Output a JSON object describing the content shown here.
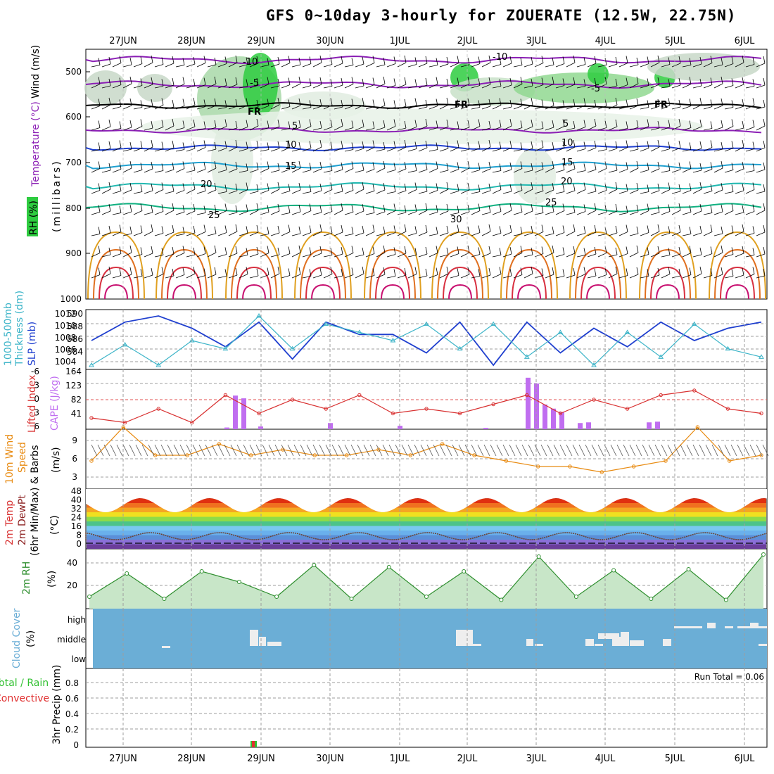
{
  "title": "GFS 0~10day 3-hourly for ZOUERATE (12.5W, 22.75N)",
  "date_labels": [
    "27JUN",
    "28JUN",
    "29JUN",
    "30JUN",
    "1JUL",
    "2JUL",
    "3JUL",
    "4JUL",
    "5JUL",
    "6JUL"
  ],
  "colors": {
    "rh_green": "#2ecc40",
    "temperature_purple": "#8b1fb5",
    "slp_blue": "#1f3fcf",
    "thickness_cyan": "#3cb4c8",
    "lifted_red": "#d83030",
    "cape_violet": "#c06ef0",
    "wind_orange": "#e88a10",
    "rh2m_green": "#2f8f2f",
    "cloud_blue": "#6baed6",
    "precip_red": "#e03030",
    "precip_green": "#30c030"
  },
  "run_total": "Run Total = 0.06",
  "panels": {
    "upper": {
      "label_wind": "Wind (m/s)",
      "label_temp": "Temperature (°C)",
      "label_rh": "RH (%)",
      "label_mb": "(millibars)",
      "ticks": [
        "500",
        "600",
        "700",
        "800",
        "900",
        "1000"
      ],
      "freezing_labels": [
        "FR",
        "FR",
        "FR"
      ],
      "temp_labels": [
        "-10",
        "-10",
        "-5",
        "-5",
        "5",
        "5",
        "10",
        "10",
        "15",
        "15",
        "20",
        "20",
        "25",
        "25",
        "30"
      ]
    },
    "slp": {
      "label_a": "1000-500mb",
      "label_b": "Thickness (dm)",
      "label_slp": "SLP (mb)",
      "left_ticks": [
        "590",
        "588",
        "586",
        "584"
      ],
      "right_ticks": [
        "1012",
        "1010",
        "1008",
        "1006",
        "1004"
      ]
    },
    "cape": {
      "label_li": "Lifted Index",
      "label_cape": "CAPE (J/kg)",
      "left_ticks": [
        "-6",
        "-3",
        "0",
        "3",
        "6"
      ],
      "right_ticks": [
        "164",
        "123",
        "82",
        "41"
      ]
    },
    "wind10": {
      "label_a": "10m Wind",
      "label_b": "Speed",
      "label_c": "& Barbs",
      "unit": "(m/s)",
      "ticks": [
        "9",
        "6",
        "3"
      ]
    },
    "temp2m": {
      "label_a": "2m Temp",
      "label_b": "2m DewPt",
      "label_c": "(6hr Min/Max)",
      "unit": "(°C)",
      "ticks": [
        "48",
        "40",
        "32",
        "24",
        "16",
        "8",
        "0"
      ]
    },
    "rh2m": {
      "label": "2m RH",
      "unit": "(%)",
      "ticks": [
        "40",
        "20"
      ]
    },
    "cloud": {
      "label": "Cloud Cover",
      "unit": "(%)",
      "levels": [
        "high",
        "middle",
        "low"
      ]
    },
    "precip": {
      "label_a": "Total / Rain",
      "label_b": "Convective",
      "label_c": "3hr Precip (mm)",
      "ticks": [
        "0.8",
        "0.6",
        "0.4",
        "0.2",
        "0"
      ]
    }
  },
  "chart_data": [
    {
      "type": "line",
      "name": "slp",
      "x": [
        "26JUN12",
        "27JUN00",
        "27JUN12",
        "28JUN00",
        "28JUN12",
        "29JUN00",
        "29JUN12",
        "30JUN00",
        "30JUN12",
        "1JUL00",
        "1JUL12",
        "2JUL00",
        "2JUL12",
        "3JUL00",
        "3JUL12",
        "4JUL00",
        "4JUL12",
        "5JUL00",
        "5JUL12",
        "6JUL00",
        "6JUL06"
      ],
      "series": [
        {
          "name": "SLP (mb)",
          "values": [
            1008,
            1011,
            1012,
            1010,
            1007,
            1011,
            1005,
            1011,
            1009,
            1009,
            1006,
            1011,
            1004,
            1011,
            1006,
            1010,
            1007,
            1011,
            1008,
            1010,
            1011
          ]
        },
        {
          "name": "1000-500mb Thickness (dm)",
          "values": [
            584,
            586.5,
            584,
            587,
            586,
            590,
            586,
            589,
            588,
            587,
            589,
            586,
            589,
            585,
            588,
            584,
            588,
            585,
            589,
            586,
            585
          ]
        }
      ],
      "ylim_slp": [
        1004,
        1012
      ],
      "ylim_thickness": [
        584,
        590
      ]
    },
    {
      "type": "bar",
      "name": "cape",
      "categories": [
        "28JUN18",
        "28JUN21",
        "29JUN00",
        "29JUN03",
        "30JUN00",
        "1JUL00",
        "2JUL12",
        "3JUL00",
        "3JUL03",
        "3JUL06",
        "3JUL09",
        "3JUL12",
        "3JUL18",
        "3JUL21",
        "4JUL18",
        "4JUL21"
      ],
      "values": [
        5,
        98,
        90,
        8,
        18,
        10,
        4,
        150,
        133,
        72,
        60,
        50,
        18,
        20,
        20,
        22
      ],
      "ylim": [
        0,
        164
      ]
    },
    {
      "type": "line",
      "name": "lifted_index",
      "y_values": [
        4,
        5,
        2,
        5,
        -1,
        3,
        0,
        2,
        -1,
        3,
        2,
        3,
        1,
        -1,
        3,
        0,
        2,
        -1,
        -2,
        2,
        3
      ],
      "ylim": [
        6,
        -6
      ]
    },
    {
      "type": "line",
      "name": "wind10m",
      "y_values": [
        4,
        10,
        5,
        5,
        7,
        5,
        6,
        5,
        5,
        6,
        5,
        7,
        5,
        4,
        3,
        3,
        2,
        3,
        4,
        10,
        4,
        5
      ],
      "ylim": [
        0,
        10
      ]
    },
    {
      "type": "area",
      "name": "temp2m",
      "max_values": [
        41,
        41,
        41,
        41,
        41,
        41,
        41,
        41,
        41,
        41
      ],
      "min_values": [
        29,
        29,
        28,
        28,
        28,
        28,
        28,
        28,
        28,
        28
      ],
      "dewpt": [
        3,
        7,
        3,
        8,
        4,
        7,
        4,
        9,
        5,
        10
      ],
      "ylim": [
        -4,
        48
      ]
    },
    {
      "type": "line",
      "name": "rh2m",
      "values": [
        8,
        30,
        6,
        32,
        22,
        8,
        38,
        6,
        36,
        8,
        32,
        5,
        46,
        8,
        33,
        6,
        34,
        5,
        48
      ],
      "ylim": [
        0,
        50
      ]
    },
    {
      "type": "bar",
      "name": "precip",
      "categories": [
        "29JUN00"
      ],
      "values": [
        0.06
      ],
      "ylim": [
        0,
        1
      ]
    }
  ]
}
